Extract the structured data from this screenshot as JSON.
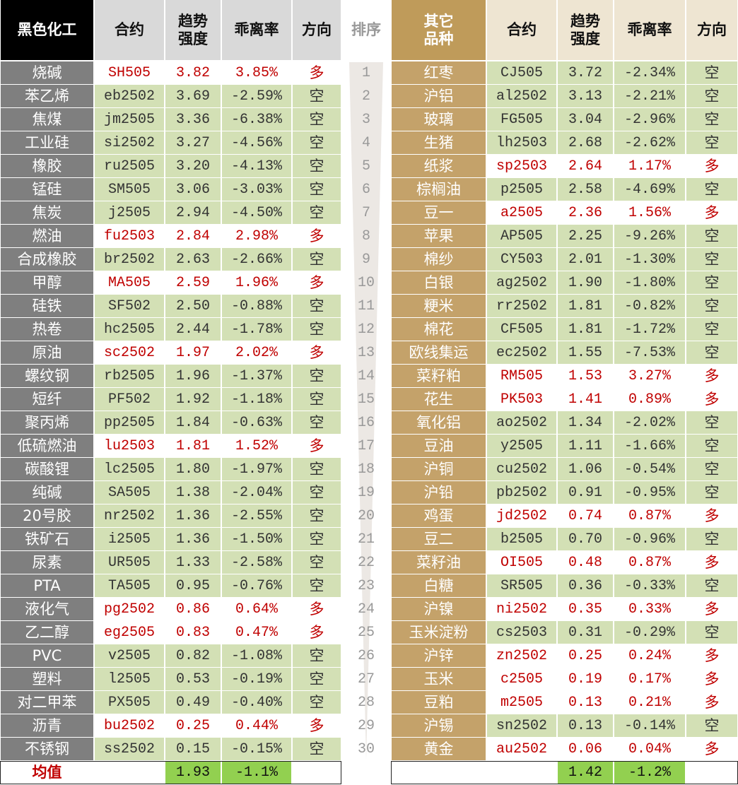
{
  "left_table": {
    "headers": [
      "黑色化工",
      "合约",
      "趋势\n强度",
      "乖离率",
      "方向"
    ],
    "rows": [
      [
        "烧碱",
        "SH505",
        "3.82",
        "3.85%",
        "多"
      ],
      [
        "苯乙烯",
        "eb2502",
        "3.69",
        "-2.59%",
        "空"
      ],
      [
        "焦煤",
        "jm2505",
        "3.36",
        "-6.38%",
        "空"
      ],
      [
        "工业硅",
        "si2502",
        "3.27",
        "-4.56%",
        "空"
      ],
      [
        "橡胶",
        "ru2505",
        "3.20",
        "-4.13%",
        "空"
      ],
      [
        "锰硅",
        "SM505",
        "3.06",
        "-3.03%",
        "空"
      ],
      [
        "焦炭",
        "j2505",
        "2.94",
        "-4.50%",
        "空"
      ],
      [
        "燃油",
        "fu2503",
        "2.84",
        "2.98%",
        "多"
      ],
      [
        "合成橡胶",
        "br2502",
        "2.63",
        "-2.66%",
        "空"
      ],
      [
        "甲醇",
        "MA505",
        "2.59",
        "1.96%",
        "多"
      ],
      [
        "硅铁",
        "SF502",
        "2.50",
        "-0.88%",
        "空"
      ],
      [
        "热卷",
        "hc2505",
        "2.44",
        "-1.78%",
        "空"
      ],
      [
        "原油",
        "sc2502",
        "1.97",
        "2.02%",
        "多"
      ],
      [
        "螺纹钢",
        "rb2505",
        "1.96",
        "-1.37%",
        "空"
      ],
      [
        "短纤",
        "PF502",
        "1.92",
        "-1.18%",
        "空"
      ],
      [
        "聚丙烯",
        "pp2505",
        "1.84",
        "-0.63%",
        "空"
      ],
      [
        "低硫燃油",
        "lu2503",
        "1.81",
        "1.52%",
        "多"
      ],
      [
        "碳酸锂",
        "lc2505",
        "1.80",
        "-1.97%",
        "空"
      ],
      [
        "纯碱",
        "SA505",
        "1.38",
        "-2.04%",
        "空"
      ],
      [
        "20号胶",
        "nr2502",
        "1.36",
        "-2.55%",
        "空"
      ],
      [
        "铁矿石",
        "i2505",
        "1.36",
        "-1.50%",
        "空"
      ],
      [
        "尿素",
        "UR505",
        "1.33",
        "-2.58%",
        "空"
      ],
      [
        "PTA",
        "TA505",
        "0.95",
        "-0.76%",
        "空"
      ],
      [
        "液化气",
        "pg2502",
        "0.86",
        "0.64%",
        "多"
      ],
      [
        "乙二醇",
        "eg2505",
        "0.83",
        "0.47%",
        "多"
      ],
      [
        "PVC",
        "v2505",
        "0.82",
        "-1.08%",
        "空"
      ],
      [
        "塑料",
        "l2505",
        "0.53",
        "-0.19%",
        "空"
      ],
      [
        "对二甲苯",
        "PX505",
        "0.49",
        "-0.40%",
        "空"
      ],
      [
        "沥青",
        "bu2502",
        "0.25",
        "0.44%",
        "多"
      ],
      [
        "不锈钢",
        "ss2502",
        "0.15",
        "-0.15%",
        "空"
      ]
    ],
    "average": {
      "label": "均值",
      "strength": "1.93",
      "bias": "-1.1%"
    }
  },
  "rank": {
    "header": "排序",
    "values": [
      1,
      2,
      3,
      4,
      5,
      6,
      7,
      8,
      9,
      10,
      11,
      12,
      13,
      14,
      15,
      16,
      17,
      18,
      19,
      20,
      21,
      22,
      23,
      24,
      25,
      26,
      27,
      28,
      29,
      30
    ]
  },
  "right_table": {
    "headers": [
      "其它\n品种",
      "合约",
      "趋势\n强度",
      "乖离率",
      "方向"
    ],
    "rows": [
      [
        "红枣",
        "CJ505",
        "3.72",
        "-2.34%",
        "空"
      ],
      [
        "沪铝",
        "al2502",
        "3.13",
        "-2.21%",
        "空"
      ],
      [
        "玻璃",
        "FG505",
        "3.04",
        "-2.96%",
        "空"
      ],
      [
        "生猪",
        "lh2503",
        "2.68",
        "-2.62%",
        "空"
      ],
      [
        "纸浆",
        "sp2503",
        "2.64",
        "1.17%",
        "多"
      ],
      [
        "棕榈油",
        "p2505",
        "2.58",
        "-4.69%",
        "空"
      ],
      [
        "豆一",
        "a2505",
        "2.36",
        "1.56%",
        "多"
      ],
      [
        "苹果",
        "AP505",
        "2.25",
        "-9.26%",
        "空"
      ],
      [
        "棉纱",
        "CY503",
        "2.01",
        "-1.30%",
        "空"
      ],
      [
        "白银",
        "ag2502",
        "1.90",
        "-1.80%",
        "空"
      ],
      [
        "粳米",
        "rr2502",
        "1.81",
        "-0.82%",
        "空"
      ],
      [
        "棉花",
        "CF505",
        "1.81",
        "-1.72%",
        "空"
      ],
      [
        "欧线集运",
        "ec2502",
        "1.55",
        "-7.53%",
        "空"
      ],
      [
        "菜籽粕",
        "RM505",
        "1.53",
        "3.27%",
        "多"
      ],
      [
        "花生",
        "PK503",
        "1.41",
        "0.89%",
        "多"
      ],
      [
        "氧化铝",
        "ao2502",
        "1.34",
        "-2.02%",
        "空"
      ],
      [
        "豆油",
        "y2505",
        "1.11",
        "-1.66%",
        "空"
      ],
      [
        "沪铜",
        "cu2502",
        "1.06",
        "-0.54%",
        "空"
      ],
      [
        "沪铅",
        "pb2502",
        "0.91",
        "-0.95%",
        "空"
      ],
      [
        "鸡蛋",
        "jd2502",
        "0.74",
        "0.87%",
        "多"
      ],
      [
        "豆二",
        "b2505",
        "0.70",
        "-0.96%",
        "空"
      ],
      [
        "菜籽油",
        "OI505",
        "0.48",
        "0.87%",
        "多"
      ],
      [
        "白糖",
        "SR505",
        "0.36",
        "-0.33%",
        "空"
      ],
      [
        "沪镍",
        "ni2502",
        "0.35",
        "0.33%",
        "多"
      ],
      [
        "玉米淀粉",
        "cs2503",
        "0.31",
        "-0.29%",
        "空"
      ],
      [
        "沪锌",
        "zn2502",
        "0.25",
        "0.24%",
        "多"
      ],
      [
        "玉米",
        "c2505",
        "0.19",
        "0.17%",
        "多"
      ],
      [
        "豆粕",
        "m2505",
        "0.13",
        "0.21%",
        "多"
      ],
      [
        "沪锡",
        "sn2502",
        "0.13",
        "-0.14%",
        "空"
      ],
      [
        "黄金",
        "au2502",
        "0.06",
        "0.04%",
        "多"
      ]
    ],
    "average": {
      "strength": "1.42",
      "bias": "-1.2%"
    }
  }
}
